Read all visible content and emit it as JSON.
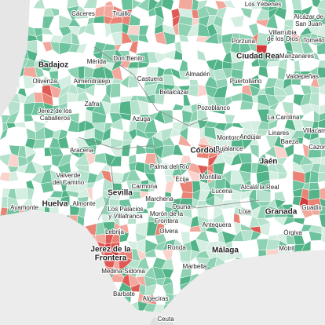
{
  "labels": [
    "Cáceres",
    "Trujillo",
    "Los Yébenes",
    "Alcázar de",
    "San Juan",
    "Villarrubia",
    "de los Ojos",
    "Porzuna",
    "Tomelloso",
    "Badajoz",
    "Mérida",
    "Don Benito",
    "Ciudad Real",
    "Manzanares",
    "Olivenza",
    "Almendralejo",
    "Castuera",
    "Almadén",
    "Puertollano",
    "Valdepeñas",
    "Zafra",
    "Belalcázar",
    "Jerez de los",
    "Caballeros",
    "Azuga",
    "Pozoblanco",
    "La Carolina",
    "Villacarrillo",
    "Montoro",
    "Andújar",
    "Linares",
    "Baeza",
    "Cazorla",
    "Aracena",
    "Córdoba",
    "Bujalance",
    "Jaén",
    "Palma del Río",
    "Valverde",
    "del Camino",
    "Écija",
    "Montilla",
    "Alcalá la Real",
    "Sevilla",
    "Carmona",
    "Lucena",
    "Ayamonte",
    "Huelva",
    "Almonte",
    "Marchena",
    "Los Palacios",
    "y Villafranca",
    "Osuna",
    "Loja",
    "Granada",
    "Guadix",
    "Morón de la",
    "Frontera",
    "Antequera",
    "Lebrija",
    "Olvera",
    "Órgiva",
    "Jerez de la",
    "Frontera",
    "Ronda",
    "Málaga",
    "Motril",
    "Medina-Sidonia",
    "Marbella",
    "Barbate",
    "Algeciras",
    "Ceuta"
  ]
}
